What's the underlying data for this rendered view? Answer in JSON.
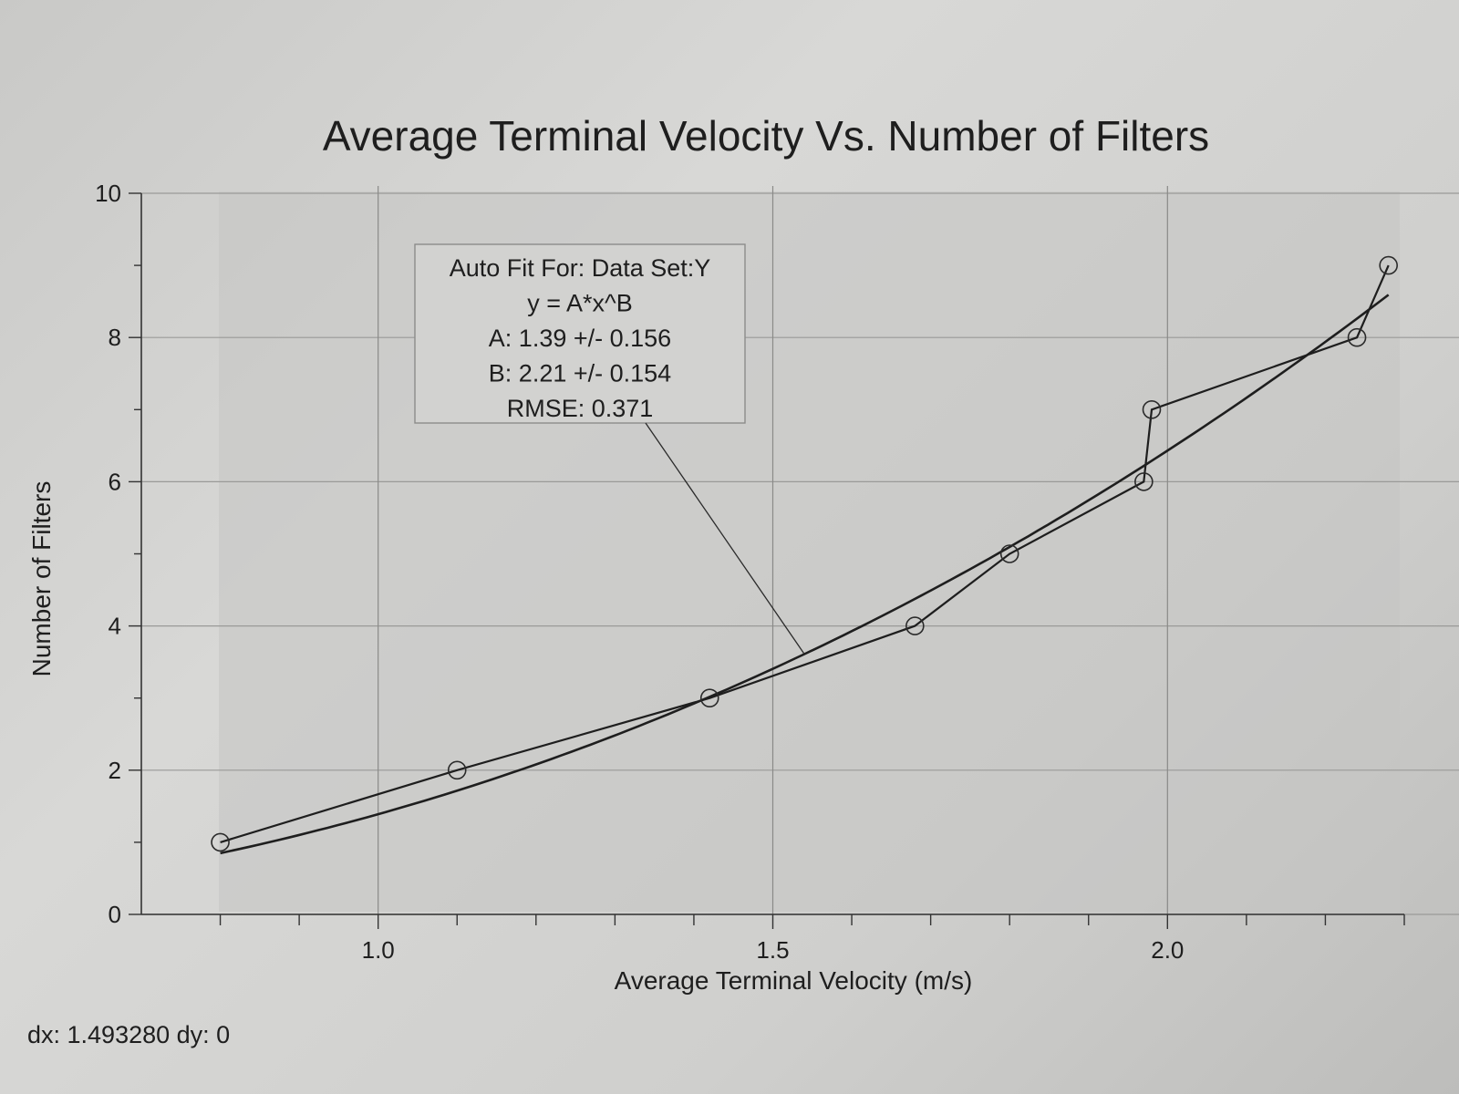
{
  "chart_data": {
    "type": "scatter",
    "title": "Average Terminal Velocity Vs. Number of Filters",
    "xlabel": "Average Terminal Velocity (m/s)",
    "ylabel": "Number of Filters",
    "xlim": [
      0.7,
      2.3
    ],
    "ylim": [
      0,
      10
    ],
    "x_ticks": [
      1.0,
      1.5,
      2.0
    ],
    "x_tick_labels": [
      "1.0",
      "1.5",
      "2.0"
    ],
    "y_ticks": [
      0,
      2,
      4,
      6,
      8,
      10
    ],
    "y_tick_labels": [
      "0",
      "2",
      "4",
      "6",
      "8",
      "10"
    ],
    "grid": true,
    "series": [
      {
        "name": "Data Set:Y",
        "x": [
          0.8,
          1.1,
          1.42,
          1.68,
          1.8,
          1.97,
          1.98,
          2.24,
          2.28
        ],
        "y": [
          1,
          2,
          3,
          4,
          5,
          6,
          7,
          8,
          9
        ],
        "markers": true,
        "connected": true
      }
    ],
    "fit": {
      "model": "power",
      "A": 1.39,
      "B": 2.21,
      "x_range": [
        0.8,
        2.28
      ],
      "lines": [
        "Auto Fit For:  Data Set:Y",
        "y = A*x^B",
        "A: 1.39 +/- 0.156",
        "B: 2.21 +/- 0.154",
        "RMSE: 0.371"
      ]
    }
  },
  "footer": {
    "readout": "dx: 1.493280 dy: 0"
  }
}
